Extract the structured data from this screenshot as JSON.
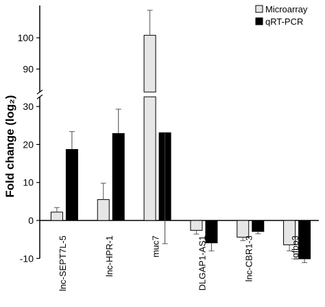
{
  "chart_data": {
    "type": "bar",
    "ylabel": "Fold change (log₂)",
    "categories": [
      "lnc-SEPT7L-5",
      "lnc-HPR-1",
      "muc7",
      "DLGAP1-AS1",
      "lnc-CBR1-3",
      "igfbp3"
    ],
    "series": [
      {
        "name": "Microarray",
        "color": "#e6e6e6",
        "values": [
          2.2,
          5.5,
          100.8,
          -2.6,
          -4.4,
          -6.4
        ],
        "error": [
          1.2,
          4.3,
          8.0,
          1.0,
          0.9,
          1.6
        ]
      },
      {
        "name": "qRT-PCR",
        "color": "#000000",
        "values": [
          18.7,
          22.9,
          23.1,
          -5.9,
          -2.9,
          -10.1
        ],
        "error": [
          4.7,
          6.4,
          11.0,
          2.1,
          0.6,
          1.0
        ]
      }
    ],
    "y_segments": [
      {
        "range": [
          -10,
          33
        ],
        "ticks": [
          -10,
          0,
          10,
          20,
          30
        ]
      },
      {
        "range": [
          87,
          106
        ],
        "ticks": [
          90,
          100
        ]
      }
    ],
    "legend_position": "top-right",
    "grid": false,
    "axis_break": true
  }
}
